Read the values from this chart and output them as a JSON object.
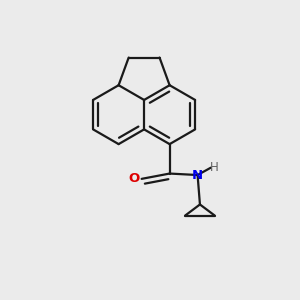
{
  "background_color": "#ebebeb",
  "bond_color": "#1a1a1a",
  "bond_width": 1.6,
  "atom_colors": {
    "O": "#dd0000",
    "N": "#0000ee",
    "H": "#606060"
  },
  "figsize": [
    3.0,
    3.0
  ],
  "dpi": 100
}
